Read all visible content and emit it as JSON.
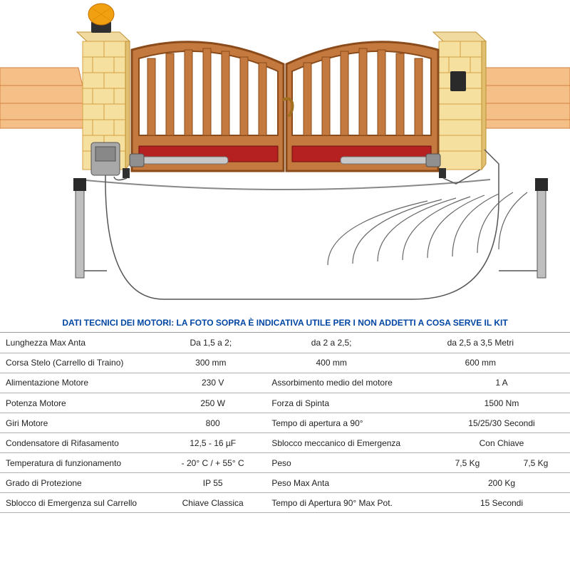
{
  "header": "DATI TECNICI DEI MOTORI: LA FOTO SOPRA È INDICATIVA UTILE PER I NON ADDETTI A COSA SERVE IL KIT",
  "colors": {
    "header_text": "#0046a3",
    "border": "#b0b0b0",
    "text": "#222222",
    "gate_fill": "#c47a3e",
    "gate_stroke": "#8a4a1a",
    "gate_panel": "#b52020",
    "pillar_fill": "#f5e0a0",
    "pillar_stroke": "#d4a040",
    "wall_fill": "#f5c088",
    "wall_stroke": "#d48040",
    "lamp_orange": "#f0a010",
    "lamp_base": "#303030",
    "actuator": "#a0a0a0",
    "controlbox": "#808080",
    "wire": "#555555",
    "signal": "#666666",
    "post": "#303030"
  },
  "rows_top": [
    {
      "label": "Lunghezza Max Anta",
      "v1": "Da 1,5 a 2;",
      "v2": "da 2 a 2,5;",
      "v3": "da 2,5 a 3,5 Metri"
    },
    {
      "label": "Corsa Stelo (Carrello di Traino)",
      "v1": "300 mm",
      "v2": "400 mm",
      "v3": "600 mm"
    }
  ],
  "rows_bottom": [
    {
      "l1": "Alimentazione Motore",
      "v1": "230 V",
      "l2": "Assorbimento medio del motore",
      "v2": "1 A"
    },
    {
      "l1": "Potenza Motore",
      "v1": "250 W",
      "l2": "Forza di Spinta",
      "v2": "1500 Nm"
    },
    {
      "l1": "Giri Motore",
      "v1": "800",
      "l2": "Tempo di apertura a 90°",
      "v2": "15/25/30 Secondi"
    },
    {
      "l1": "Condensatore di Rifasamento",
      "v1": "12,5 - 16 µF",
      "l2": "Sblocco meccanico di Emergenza",
      "v2": "Con Chiave"
    },
    {
      "l1": "Temperatura di funzionamento",
      "v1": "- 20° C / + 55° C",
      "l2": "Peso",
      "v2a": "7,5 Kg",
      "v2b": "7,5 Kg"
    },
    {
      "l1": "Grado di Protezione",
      "v1": "IP 55",
      "l2": "Peso Max Anta",
      "v2": "200 Kg"
    },
    {
      "l1": "Sblocco di Emergenza sul Carrello",
      "v1": "Chiave Classica",
      "l2": "Tempo di Apertura 90° Max Pot.",
      "v2": "15 Secondi"
    }
  ]
}
